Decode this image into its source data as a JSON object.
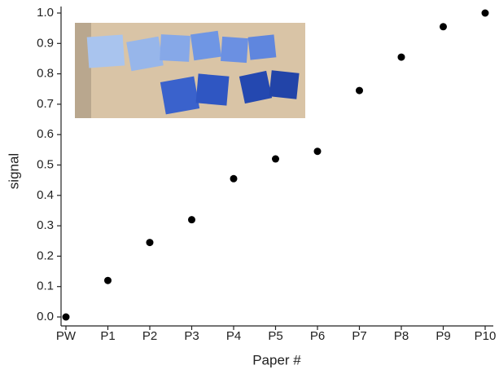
{
  "chart_data": {
    "type": "scatter",
    "x_label": "Paper #",
    "y_label": "signal",
    "categories": [
      "PW",
      "P1",
      "P2",
      "P3",
      "P4",
      "P5",
      "P6",
      "P7",
      "P8",
      "P9",
      "P10"
    ],
    "values": [
      0.0,
      0.12,
      0.245,
      0.32,
      0.455,
      0.52,
      0.545,
      0.745,
      0.855,
      0.955,
      1.0
    ],
    "color": "#000000",
    "ylim": [
      0,
      1
    ],
    "yticks": [
      {
        "value": 0,
        "label": "0.0"
      },
      0.1,
      0.2,
      0.3,
      0.4,
      0.5,
      0.6,
      0.7,
      0.8,
      0.9,
      {
        "value": 1,
        "label": "1.0"
      }
    ]
  }
}
